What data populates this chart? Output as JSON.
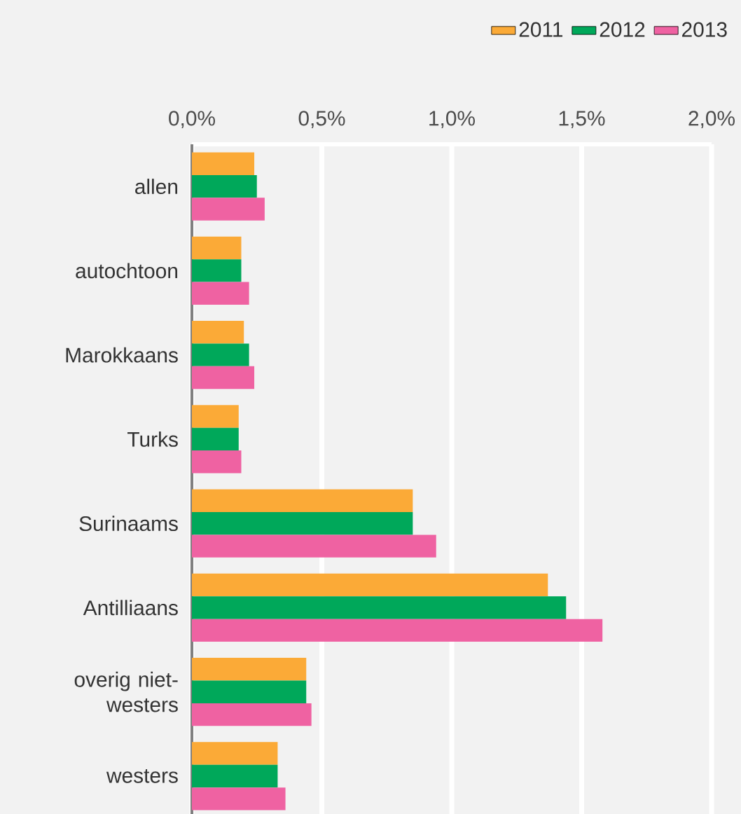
{
  "chart_data": {
    "type": "bar",
    "orientation": "horizontal",
    "categories": [
      "allen",
      "autochtoon",
      "Marokkaans",
      "Turks",
      "Surinaams",
      "Antilliaans",
      "overig niet-westers",
      "westers"
    ],
    "series": [
      {
        "name": "2011",
        "color": "#fbaa37",
        "values": [
          0.24,
          0.19,
          0.2,
          0.18,
          0.85,
          1.37,
          0.44,
          0.33
        ]
      },
      {
        "name": "2012",
        "color": "#00a85a",
        "values": [
          0.25,
          0.19,
          0.22,
          0.18,
          0.85,
          1.44,
          0.44,
          0.33
        ]
      },
      {
        "name": "2013",
        "color": "#ef62a2",
        "values": [
          0.28,
          0.22,
          0.24,
          0.19,
          0.94,
          1.58,
          0.46,
          0.36
        ]
      }
    ],
    "xlim": [
      0,
      2
    ],
    "xticks": [
      {
        "value": 0,
        "label": "0,0%"
      },
      {
        "value": 0.5,
        "label": "0,5%"
      },
      {
        "value": 1,
        "label": "1,0%"
      },
      {
        "value": 1.5,
        "label": "1,5%"
      },
      {
        "value": 2,
        "label": "2,0%"
      }
    ],
    "grid": "x",
    "legend": "top right"
  }
}
